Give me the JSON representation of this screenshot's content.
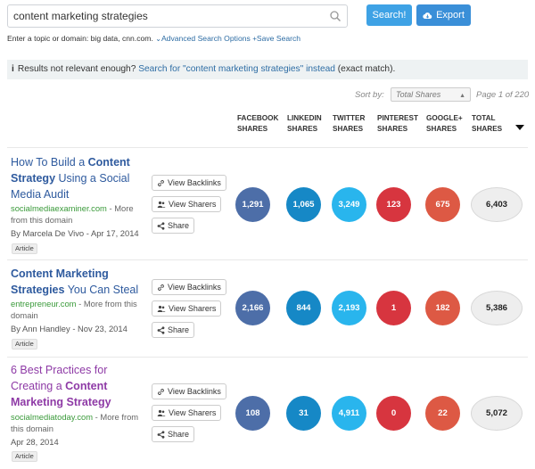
{
  "search": {
    "value": "content marketing strategies",
    "search_button": "Search!",
    "export_button": "Export"
  },
  "hint": {
    "text": "Enter a topic or domain: big data, cnn.com.",
    "advanced": "Advanced Search Options",
    "save": "Save Search"
  },
  "notice": {
    "text": "Results not relevant enough?",
    "link": "Search for \"content marketing strategies\" instead",
    "suffix": "(exact match)."
  },
  "sort": {
    "label": "Sort by:",
    "selected": "Total Shares",
    "page": "Page 1 of 220"
  },
  "columns": {
    "facebook": [
      "FACEBOOK",
      "SHARES"
    ],
    "linkedin": [
      "LINKEDIN",
      "SHARES"
    ],
    "twitter": [
      "TWITTER",
      "SHARES"
    ],
    "pinterest": [
      "PINTEREST",
      "SHARES"
    ],
    "googleplus": [
      "GOOGLE+",
      "SHARES"
    ],
    "total": [
      "TOTAL",
      "SHARES"
    ]
  },
  "actions": {
    "backlinks": "View Backlinks",
    "sharers": "View Sharers",
    "share": "Share"
  },
  "colors": {
    "facebook": "#4d6ea8",
    "linkedin": "#1688c6",
    "twitter": "#29b5ed",
    "pinterest": "#d7353f",
    "googleplus": "#dd5944"
  },
  "results": [
    {
      "title_pre": "How To Build a ",
      "title_bold": "Content Strategy",
      "title_post": " Using a Social Media Audit",
      "domain": "socialmediaexaminer.com",
      "more": " - More from this domain",
      "author": "By Marcela De Vivo - Apr 17, 2014",
      "badge": "Article",
      "facebook": "1,291",
      "linkedin": "1,065",
      "twitter": "3,249",
      "pinterest": "123",
      "googleplus": "675",
      "total": "6,403"
    },
    {
      "title_pre": "",
      "title_bold": "Content Marketing Strategies",
      "title_post": " You Can Steal",
      "domain": "entrepreneur.com",
      "more": " - More from this domain",
      "author": "By Ann Handley - Nov 23, 2014",
      "badge": "Article",
      "facebook": "2,166",
      "linkedin": "844",
      "twitter": "2,193",
      "pinterest": "1",
      "googleplus": "182",
      "total": "5,386"
    },
    {
      "title_pre": "6 Best Practices for Creating a ",
      "title_bold": "Content Marketing Strategy",
      "title_post": "",
      "domain": "socialmediatoday.com",
      "more": " - More from this domain",
      "author": "Apr 28, 2014",
      "badge": "Article",
      "facebook": "108",
      "linkedin": "31",
      "twitter": "4,911",
      "pinterest": "0",
      "googleplus": "22",
      "total": "5,072"
    }
  ]
}
